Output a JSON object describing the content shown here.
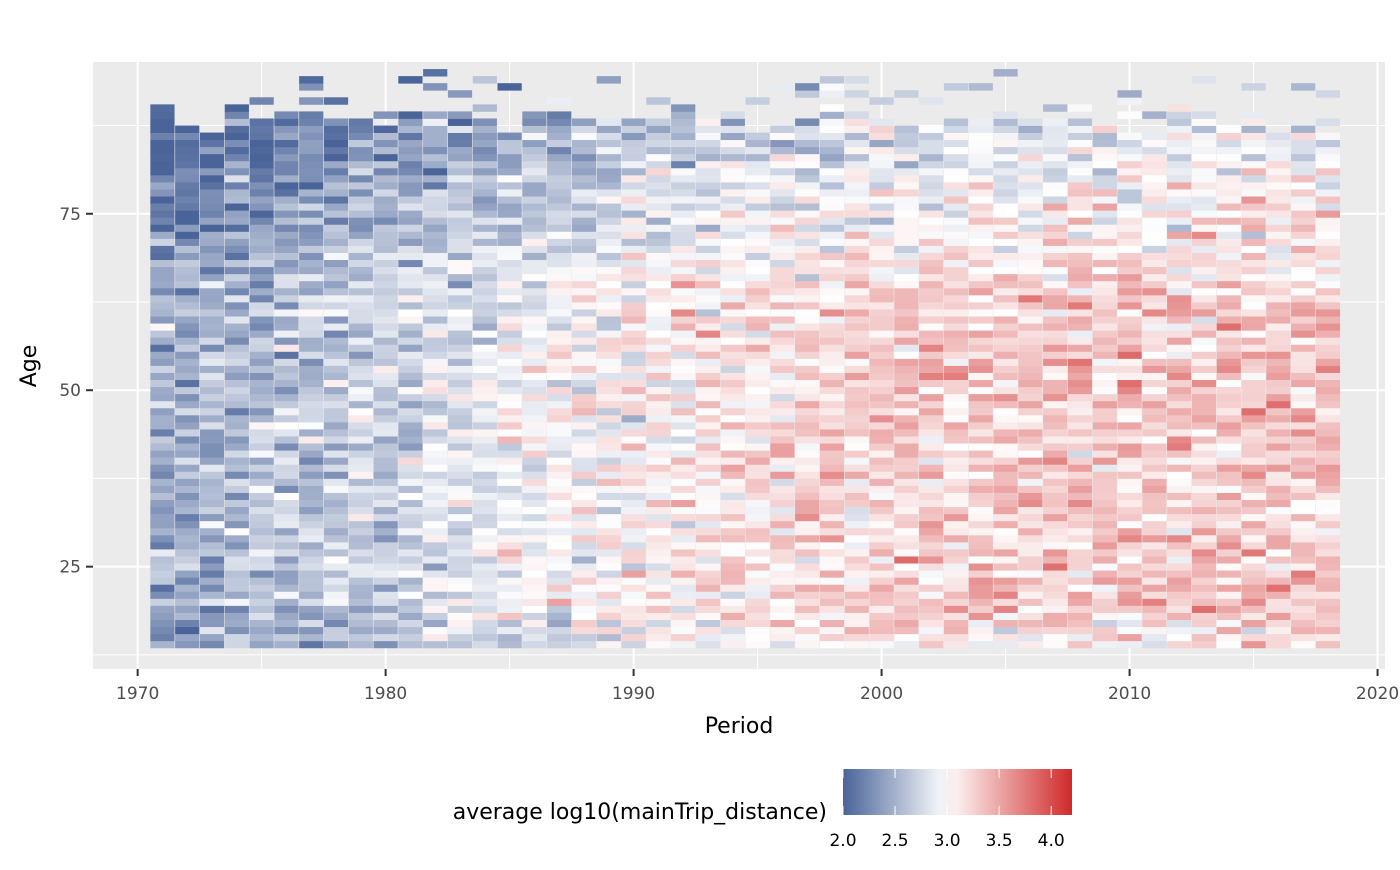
{
  "chart_data": {
    "type": "heatmap",
    "title": "",
    "xlabel": "Period",
    "ylabel": "Age",
    "xlim": [
      1968.2,
      2020.3
    ],
    "ylim": [
      10.5,
      96.5
    ],
    "x_ticks": [
      1970,
      1980,
      1990,
      2000,
      2010,
      2020
    ],
    "x_tick_labels": [
      "1970",
      "1980",
      "1990",
      "2000",
      "2010",
      "2020"
    ],
    "y_ticks": [
      25,
      50,
      75
    ],
    "y_tick_labels": [
      "25",
      "50",
      "75"
    ],
    "grid": true,
    "panel_background": "#EBEBEB",
    "x_range": [
      1971,
      2018
    ],
    "age_range": [
      14,
      95
    ],
    "cell_values_note": "",
    "color_scale": {
      "label": "average log10(mainTrip_distance)",
      "low": 2.0,
      "mid": 3.0,
      "high": 4.2,
      "low_color": "#4A6499",
      "mid_color": "#FFFFFF",
      "high_color": "#D02A2A",
      "ticks": [
        2.0,
        2.5,
        3.0,
        3.5,
        4.0
      ],
      "tick_labels": [
        "2.0",
        "2.5",
        "3.0",
        "3.5",
        "4.0"
      ],
      "position": "bottom"
    },
    "trend": {
      "description": "",
      "values_by_decade": [
        {
          "period": 1971,
          "typical_value": 2.45
        },
        {
          "period": 1980,
          "typical_value": 2.75
        },
        {
          "period": 1990,
          "typical_value": 3.05
        },
        {
          "period": 2000,
          "typical_value": 3.25
        },
        {
          "period": 2010,
          "typical_value": 3.3
        },
        {
          "period": 2018,
          "typical_value": 3.35
        }
      ]
    }
  }
}
